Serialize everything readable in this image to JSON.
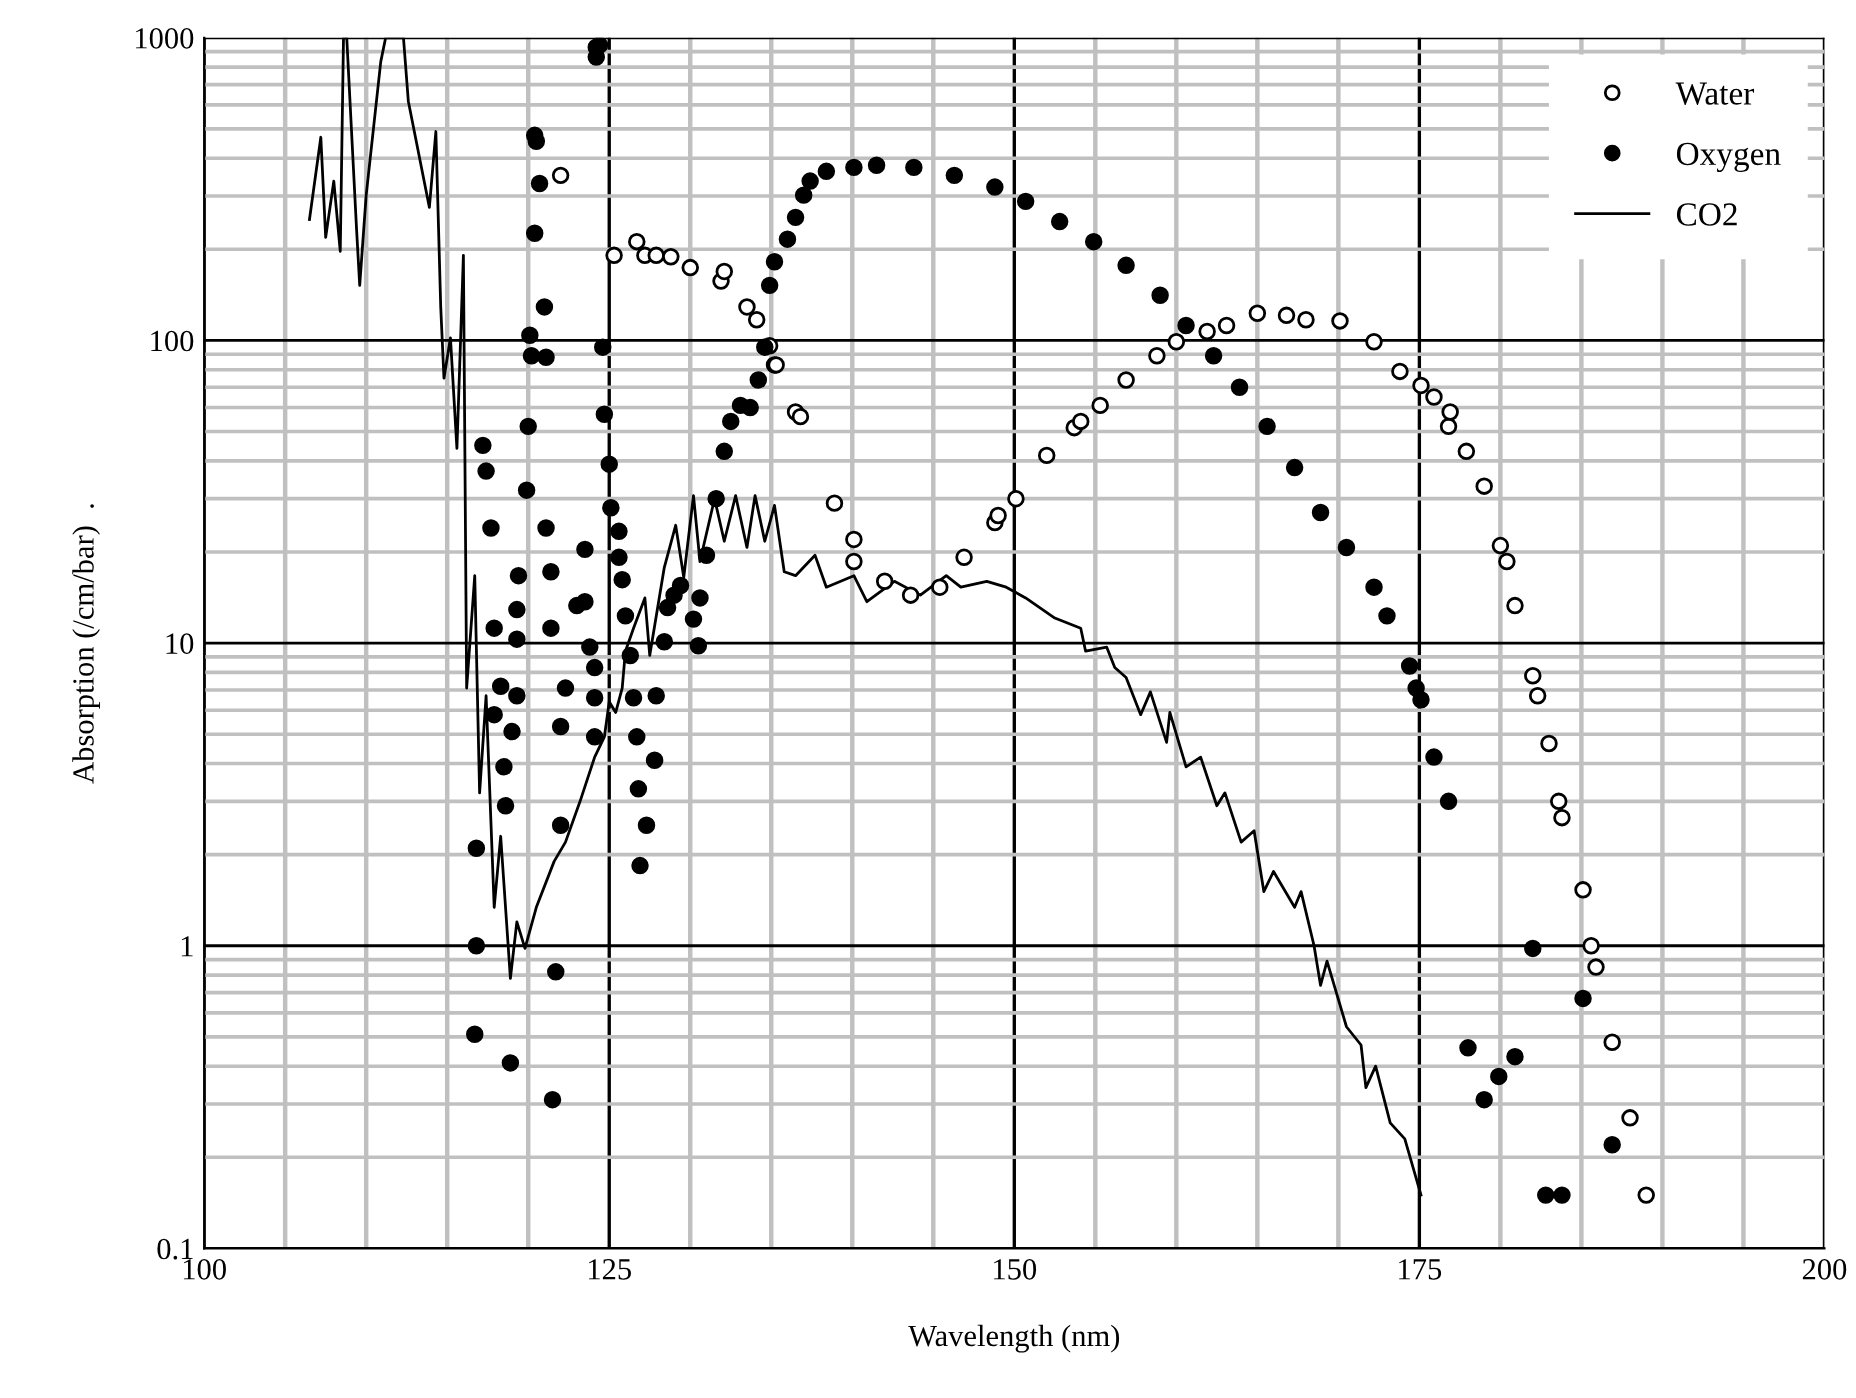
{
  "chart_data": {
    "type": "scatter",
    "xlabel": "Wavelength (nm)",
    "ylabel": "Absorption (/cm/bar)  .",
    "log": "y",
    "grid": true,
    "legend": "top right",
    "xlim": [
      100,
      200
    ],
    "ylim": [
      0.1,
      1000
    ],
    "xticks": [
      100,
      {
        "value": 105,
        "label": null
      },
      {
        "value": 110,
        "label": null
      },
      {
        "value": 115,
        "label": null
      },
      {
        "value": 120,
        "label": null
      },
      125,
      {
        "value": 130,
        "label": null
      },
      {
        "value": 135,
        "label": null
      },
      {
        "value": 140,
        "label": null
      },
      {
        "value": 145,
        "label": null
      },
      150,
      {
        "value": 155,
        "label": null
      },
      {
        "value": 160,
        "label": null
      },
      {
        "value": 165,
        "label": null
      },
      {
        "value": 170,
        "label": null
      },
      175,
      {
        "value": 180,
        "label": null
      },
      {
        "value": 185,
        "label": null
      },
      {
        "value": 190,
        "label": null
      },
      {
        "value": 195,
        "label": null
      },
      200
    ],
    "yticks": [
      0.1,
      1,
      10,
      100,
      1000
    ],
    "series": [
      {
        "name": "Water",
        "marker": "circle",
        "color": "#ffffff",
        "x": [
          122.0,
          125.3,
          126.7,
          127.2,
          127.9,
          128.8,
          130.0,
          131.9,
          132.1,
          133.5,
          134.1,
          134.9,
          135.2,
          135.3,
          136.5,
          136.8,
          138.9,
          140.1,
          140.1,
          142.0,
          143.6,
          145.4,
          146.9,
          148.8,
          149.0,
          150.1,
          152.0,
          153.7,
          154.1,
          155.3,
          156.9,
          158.8,
          160.0,
          161.9,
          163.1,
          165.0,
          166.8,
          168.0,
          170.1,
          172.2,
          173.8,
          175.1,
          175.9,
          176.8,
          176.9,
          177.9,
          179.0,
          180.0,
          180.4,
          180.9,
          182.0,
          182.3,
          183.0,
          183.6,
          183.8,
          185.1,
          185.6,
          185.9,
          186.9,
          188.0,
          189.0
        ],
        "values": [
          351,
          191,
          212,
          191,
          191,
          189,
          174,
          157,
          169,
          129,
          117,
          96,
          83,
          83,
          58,
          56,
          29,
          22,
          18.6,
          16,
          14.4,
          15.3,
          19.2,
          25,
          26.4,
          30,
          41.7,
          51.5,
          54,
          61,
          74,
          89,
          99,
          107,
          112,
          123,
          121,
          117,
          116,
          99,
          79,
          71,
          65,
          52,
          58,
          43,
          33,
          21,
          18.6,
          13.3,
          7.8,
          6.7,
          4.66,
          3.0,
          2.65,
          1.53,
          1.0,
          0.85,
          0.48,
          0.27,
          0.15
        ]
      },
      {
        "name": "Oxygen",
        "marker": "circle",
        "color": "#000000",
        "x": [
          116.7,
          116.8,
          116.8,
          117.2,
          117.4,
          117.7,
          117.9,
          117.9,
          118.3,
          118.5,
          118.6,
          118.9,
          119.0,
          119.3,
          119.3,
          119.3,
          119.4,
          119.9,
          120.0,
          120.1,
          120.2,
          120.4,
          120.4,
          120.5,
          120.7,
          121.0,
          121.1,
          121.1,
          121.4,
          121.4,
          121.5,
          121.7,
          122.0,
          122.0,
          122.3,
          123.0,
          123.5,
          123.5,
          123.8,
          124.1,
          124.1,
          124.1,
          124.2,
          124.2,
          124.4,
          124.6,
          124.7,
          125.0,
          125.1,
          125.6,
          125.6,
          125.8,
          126.0,
          126.3,
          126.5,
          126.7,
          126.8,
          126.9,
          127.3,
          127.8,
          127.9,
          128.4,
          128.6,
          129.0,
          129.4,
          130.2,
          130.5,
          130.6,
          131.0,
          131.6,
          132.1,
          132.5,
          133.1,
          133.7,
          134.2,
          134.6,
          134.9,
          135.2,
          136.0,
          136.5,
          137.0,
          137.4,
          138.4,
          140.1,
          141.5,
          143.8,
          146.3,
          148.8,
          150.7,
          152.8,
          154.9,
          156.9,
          159.0,
          160.6,
          162.3,
          163.9,
          165.6,
          167.3,
          168.9,
          170.5,
          172.2,
          173.0,
          174.4,
          174.8,
          175.1,
          175.9,
          176.8,
          178.0,
          179.0,
          179.9,
          180.9,
          182.0,
          182.8,
          183.8,
          185.1,
          186.9
        ],
        "values": [
          0.51,
          1.0,
          2.1,
          45,
          37,
          24,
          5.8,
          11.2,
          7.2,
          3.9,
          2.9,
          0.41,
          5.1,
          6.7,
          10.3,
          12.9,
          16.7,
          32,
          52,
          104,
          89,
          226,
          476,
          455,
          330,
          129,
          88,
          24,
          11.2,
          17.2,
          0.31,
          0.82,
          2.5,
          5.3,
          7.1,
          13.3,
          20.4,
          13.7,
          9.7,
          4.9,
          6.6,
          8.3,
          931,
          863,
          945,
          95,
          57,
          39,
          28,
          23.4,
          19.2,
          16.2,
          12.3,
          9.1,
          6.6,
          4.9,
          3.3,
          1.84,
          2.5,
          4.1,
          6.7,
          10.1,
          13.1,
          14.4,
          15.5,
          12,
          9.8,
          14.1,
          19.5,
          30,
          43,
          54,
          61,
          60,
          74,
          95,
          152,
          182,
          216,
          255,
          302,
          336,
          362,
          373,
          379,
          373,
          351,
          321,
          288,
          247,
          212,
          177,
          141,
          112,
          89,
          70,
          52,
          38,
          27,
          20.7,
          15.3,
          12.3,
          8.4,
          7.1,
          6.5,
          4.2,
          3.0,
          0.46,
          0.31,
          0.37,
          0.43,
          0.98,
          0.15,
          0.15,
          0.67,
          0.22
        ]
      },
      {
        "name": "CO2",
        "type": "line",
        "color": "#000000",
        "x": [
          106.5,
          107.2,
          107.5,
          108.0,
          108.4,
          108.6,
          108.8,
          109.4,
          109.6,
          110.0,
          110.9,
          111.2,
          112.3,
          112.6,
          113.9,
          114.3,
          114.6,
          114.8,
          115.2,
          115.6,
          116.0,
          116.2,
          116.7,
          117.0,
          117.4,
          117.9,
          118.3,
          118.9,
          119.3,
          119.8,
          120.5,
          121.6,
          122.3,
          123.2,
          124.1,
          124.7,
          125.0,
          125.4,
          125.8,
          126.0,
          126.5,
          127.2,
          127.5,
          128.4,
          129.1,
          129.6,
          130.2,
          130.6,
          131.5,
          132.1,
          132.8,
          133.5,
          134.0,
          134.6,
          135.2,
          135.8,
          136.5,
          137.7,
          138.4,
          140.1,
          140.9,
          142.6,
          144.2,
          145.8,
          146.7,
          148.3,
          149.5,
          150.7,
          152.5,
          154.1,
          154.4,
          155.7,
          156.2,
          156.9,
          157.8,
          158.4,
          159.4,
          159.6,
          160.6,
          161.5,
          162.5,
          163.0,
          164.0,
          164.8,
          165.4,
          166.0,
          167.3,
          167.7,
          168.5,
          168.9,
          169.3,
          170.5,
          171.4,
          171.7,
          172.3,
          173.2,
          174.1,
          175.1
        ],
        "values": [
          251,
          469,
          219,
          336,
          197,
          1000,
          1000,
          236,
          152,
          302,
          834,
          1000,
          1000,
          617,
          275,
          490,
          129,
          75,
          102,
          44,
          191,
          7.1,
          16.7,
          3.2,
          6.7,
          1.34,
          2.3,
          0.78,
          1.2,
          0.98,
          1.34,
          1.9,
          2.2,
          3.0,
          4.2,
          4.9,
          6.4,
          5.9,
          7.1,
          9.4,
          11.2,
          14.1,
          9.1,
          17.8,
          24.5,
          16.5,
          30.7,
          18.6,
          30,
          21.7,
          30.7,
          20.7,
          30.7,
          21.7,
          28.5,
          17.2,
          16.7,
          19.5,
          15.3,
          16.7,
          13.7,
          16,
          14.4,
          16.7,
          15.3,
          16,
          15.3,
          14.1,
          12.1,
          11.2,
          9.4,
          9.7,
          8.3,
          7.7,
          5.8,
          6.9,
          4.7,
          5.9,
          3.9,
          4.2,
          2.9,
          3.2,
          2.2,
          2.4,
          1.51,
          1.76,
          1.34,
          1.51,
          1.0,
          0.74,
          0.89,
          0.54,
          0.47,
          0.34,
          0.4,
          0.26,
          0.23,
          0.15
        ]
      }
    ]
  }
}
